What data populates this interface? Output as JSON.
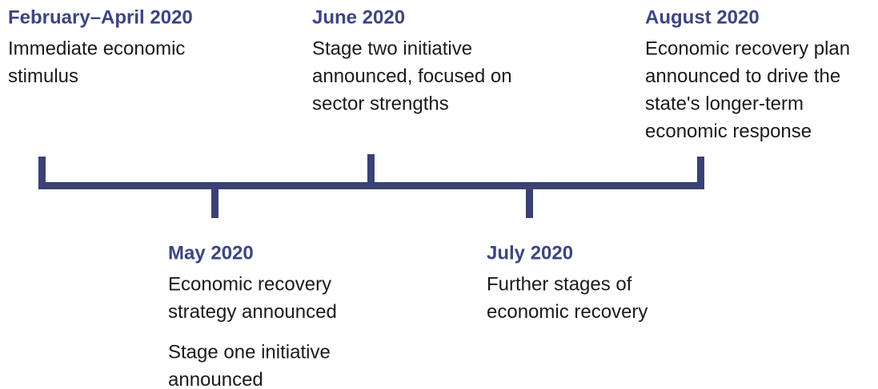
{
  "events": [
    {
      "title": "February–April 2020",
      "paragraphs": [
        [
          "Immediate economic",
          "stimulus"
        ]
      ]
    },
    {
      "title": "May 2020",
      "paragraphs": [
        [
          "Economic recovery",
          "strategy announced"
        ],
        [
          "Stage one initiative",
          "announced"
        ]
      ]
    },
    {
      "title": "June 2020",
      "paragraphs": [
        [
          "Stage two initiative",
          "announced, focused on",
          "sector strengths"
        ]
      ]
    },
    {
      "title": "July 2020",
      "paragraphs": [
        [
          "Further stages of",
          "economic recovery"
        ]
      ]
    },
    {
      "title": "August 2020",
      "paragraphs": [
        [
          "Economic recovery  plan",
          "announced to drive the",
          "state's longer-term",
          "economic response"
        ]
      ]
    }
  ]
}
